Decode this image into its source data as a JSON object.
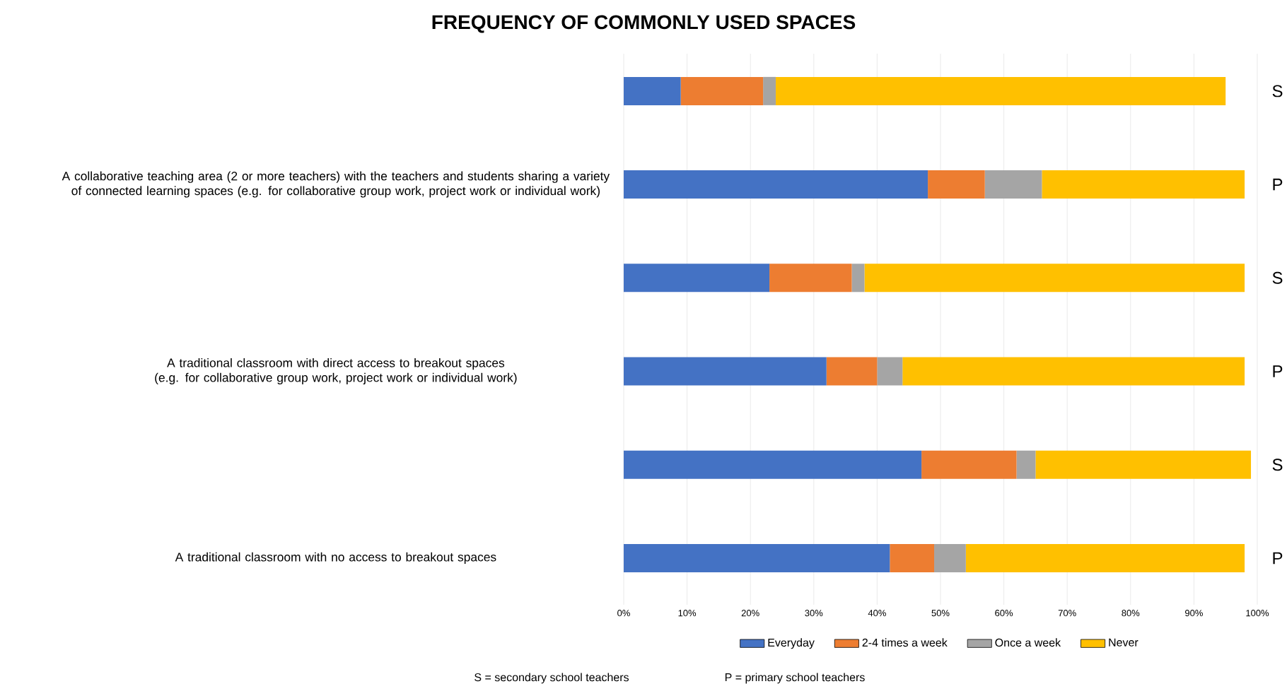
{
  "chart_data": {
    "type": "bar",
    "orientation": "horizontal",
    "stacked": true,
    "title": "FREQUENCY OF COMMONLY USED SPACES",
    "categories": [
      null,
      "A collaborative teaching area (2 or more teachers) with the teachers and students sharing a variety of connected learning spaces (e.g. for collaborative group work, project work or individual work)",
      null,
      "A traditional classroom with direct access to breakout spaces (e.g. for collaborative group work, project work or individual work)",
      null,
      "A traditional classroom with no access to breakout spaces"
    ],
    "series": [
      {
        "name": "Everyday",
        "color": "#4472c4",
        "values": [
          9,
          48,
          23,
          32,
          47,
          42
        ]
      },
      {
        "name": "2-4 times a week",
        "color": "#ed7d31",
        "values": [
          13,
          9,
          13,
          8,
          15,
          7
        ]
      },
      {
        "name": "Once a week",
        "color": "#a5a5a5",
        "values": [
          2,
          9,
          2,
          4,
          3,
          5
        ]
      },
      {
        "name": "Never",
        "color": "#ffc000",
        "values": [
          71,
          32,
          60,
          54,
          34,
          44
        ]
      }
    ],
    "xlim": [
      0,
      100
    ],
    "xticks": [
      {
        "value": 0,
        "label": "0%"
      },
      {
        "value": 10,
        "label": "10%"
      },
      {
        "value": 20,
        "label": "20%"
      },
      {
        "value": 30,
        "label": "30%"
      },
      {
        "value": 40,
        "label": "40%"
      },
      {
        "value": 50,
        "label": "50%"
      },
      {
        "value": 60,
        "label": "60%"
      },
      {
        "value": 70,
        "label": "70%"
      },
      {
        "value": 80,
        "label": "80%"
      },
      {
        "value": 90,
        "label": "90%"
      },
      {
        "value": 100,
        "label": "100%"
      }
    ],
    "grid": "x",
    "legend": "bottom",
    "annotations": [
      "S",
      "P",
      "S",
      "P",
      "S",
      "P",
      "S = secondary school teachers",
      "P = primary school teachers"
    ]
  }
}
